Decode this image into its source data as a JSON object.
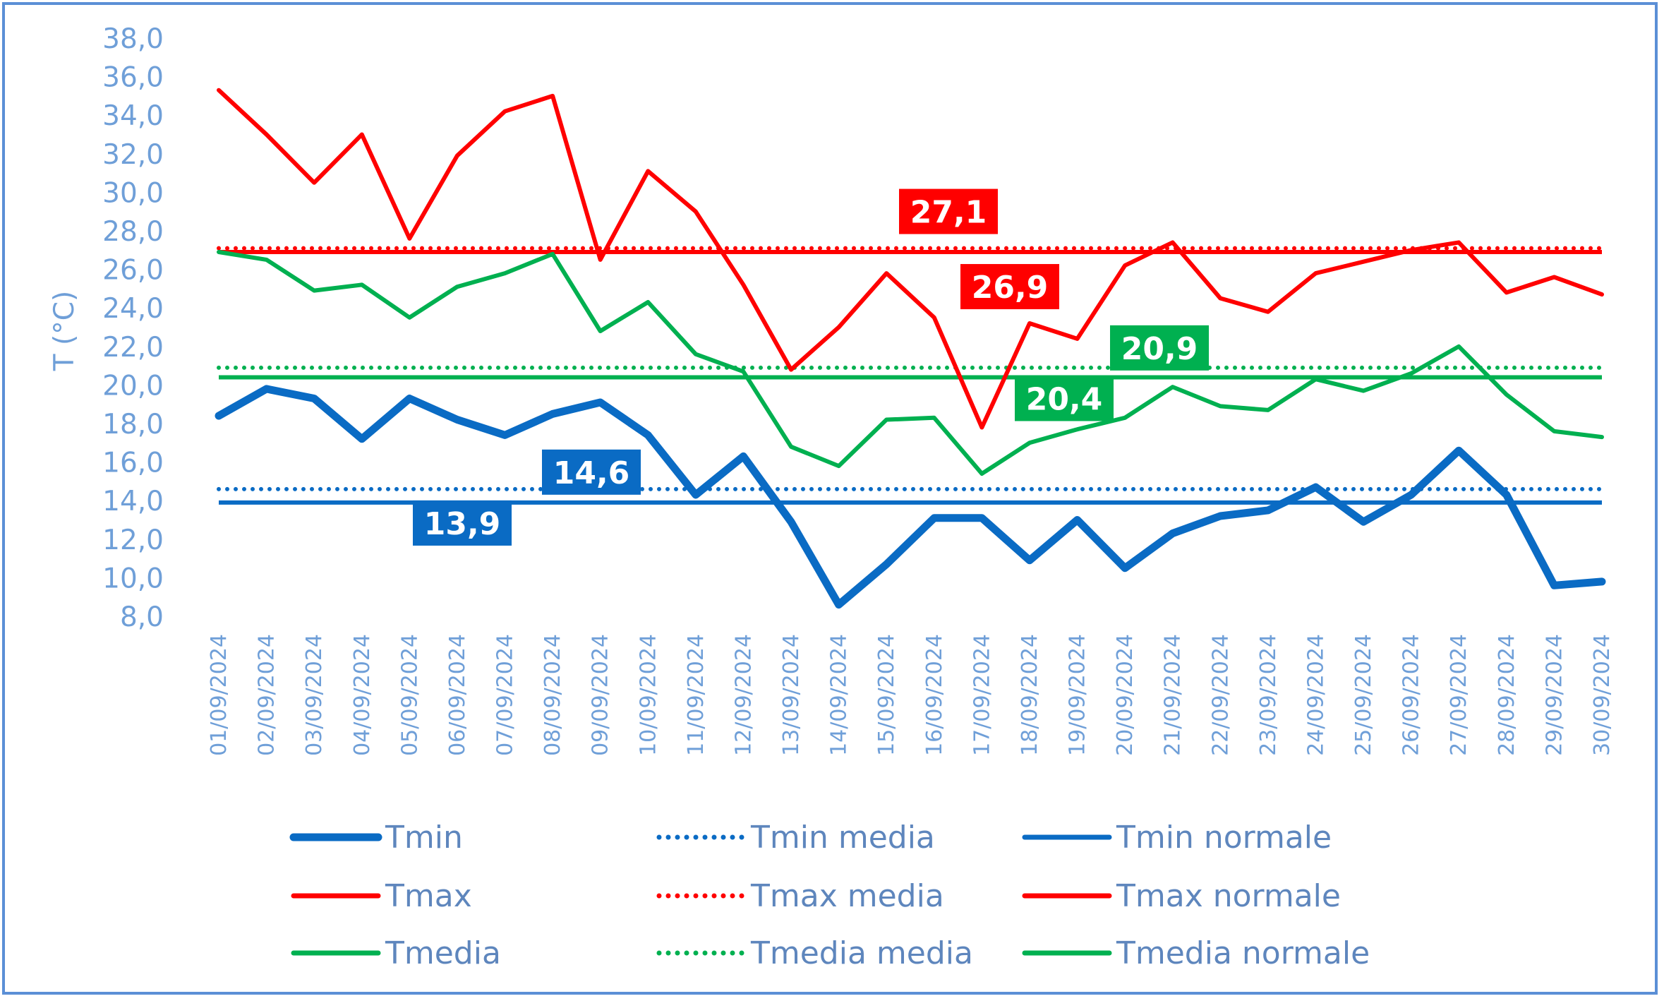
{
  "chart_data": {
    "type": "line",
    "title": "",
    "xlabel": "",
    "ylabel": "T (°C)",
    "ylim": [
      8.0,
      38.0
    ],
    "ystep": 2.0,
    "ytick_labels": [
      "8,0",
      "10,0",
      "12,0",
      "14,0",
      "16,0",
      "18,0",
      "20,0",
      "22,0",
      "24,0",
      "26,0",
      "28,0",
      "30,0",
      "32,0",
      "34,0",
      "36,0",
      "38,0"
    ],
    "grid": false,
    "legend_position": "bottom",
    "categories": [
      "01/09/2024",
      "02/09/2024",
      "03/09/2024",
      "04/09/2024",
      "05/09/2024",
      "06/09/2024",
      "07/09/2024",
      "08/09/2024",
      "09/09/2024",
      "10/09/2024",
      "11/09/2024",
      "12/09/2024",
      "13/09/2024",
      "14/09/2024",
      "15/09/2024",
      "16/09/2024",
      "17/09/2024",
      "18/09/2024",
      "19/09/2024",
      "20/09/2024",
      "21/09/2024",
      "22/09/2024",
      "23/09/2024",
      "24/09/2024",
      "25/09/2024",
      "26/09/2024",
      "27/09/2024",
      "28/09/2024",
      "29/09/2024",
      "30/09/2024"
    ],
    "series": [
      {
        "name": "Tmin",
        "color": "#0a6bc4",
        "style": "solid-thick",
        "values": [
          18.4,
          19.8,
          19.3,
          17.2,
          19.3,
          18.2,
          17.4,
          18.5,
          19.1,
          17.4,
          14.3,
          16.3,
          12.9,
          8.6,
          10.7,
          13.1,
          13.1,
          10.9,
          13.0,
          10.5,
          12.3,
          13.2,
          13.5,
          14.7,
          12.9,
          14.3,
          16.6,
          14.3,
          9.6,
          9.8
        ]
      },
      {
        "name": "Tmin media",
        "color": "#0a6bc4",
        "style": "dotted",
        "constant": 14.6,
        "label": "14,6"
      },
      {
        "name": "Tmin normale",
        "color": "#0a6bc4",
        "style": "solid",
        "constant": 13.9,
        "label": "13,9"
      },
      {
        "name": "Tmax",
        "color": "#ff0000",
        "style": "solid",
        "values": [
          35.3,
          33.0,
          30.5,
          33.0,
          27.6,
          31.9,
          34.2,
          35.0,
          26.5,
          31.1,
          29.0,
          25.2,
          20.8,
          23.0,
          25.8,
          23.5,
          17.8,
          23.2,
          22.4,
          26.2,
          27.4,
          24.5,
          23.8,
          25.8,
          26.4,
          27.0,
          27.4,
          24.8,
          25.6,
          24.7
        ]
      },
      {
        "name": "Tmax media",
        "color": "#ff0000",
        "style": "dotted",
        "constant": 27.1,
        "label": "27,1"
      },
      {
        "name": "Tmax normale",
        "color": "#ff0000",
        "style": "solid",
        "constant": 26.9,
        "label": "26,9"
      },
      {
        "name": "Tmedia",
        "color": "#00b050",
        "style": "solid",
        "values": [
          26.9,
          26.5,
          24.9,
          25.2,
          23.5,
          25.1,
          25.8,
          26.8,
          22.8,
          24.3,
          21.6,
          20.7,
          16.8,
          15.8,
          18.2,
          18.3,
          15.4,
          17.0,
          17.7,
          18.3,
          19.9,
          18.9,
          18.7,
          20.3,
          19.7,
          20.6,
          22.0,
          19.5,
          17.6,
          17.3
        ]
      },
      {
        "name": "Tmedia media",
        "color": "#00b050",
        "style": "dotted",
        "constant": 20.9,
        "label": "20,9"
      },
      {
        "name": "Tmedia normale",
        "color": "#00b050",
        "style": "solid",
        "constant": 20.4,
        "label": "20,4"
      }
    ]
  }
}
